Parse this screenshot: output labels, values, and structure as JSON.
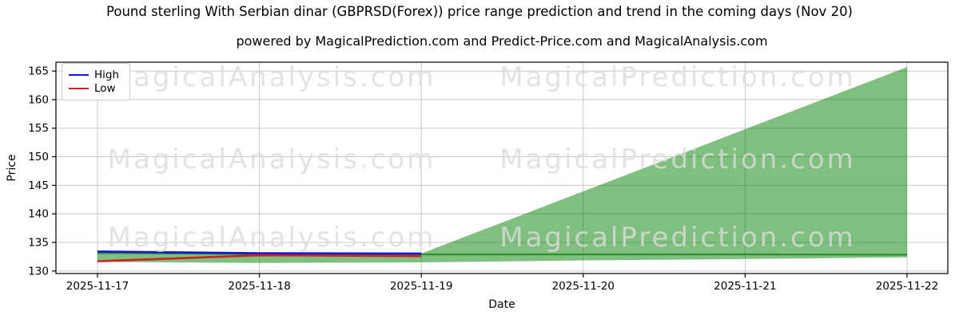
{
  "header": {
    "title": "Pound sterling With Serbian dinar (GBPRSD(Forex)) price range prediction and trend in the coming days (Nov 20)",
    "subtitle": "powered by MagicalPrediction.com and Predict-Price.com and MagicalAnalysis.com"
  },
  "watermarks": {
    "left_text": "MagicalAnalysis.com",
    "right_text": "MagicalPrediction.com",
    "color": "rgba(220,220,220,0.8)"
  },
  "chart_data": {
    "type": "line",
    "title": "Pound sterling With Serbian dinar (GBPRSD(Forex)) price range prediction and trend in the coming days (Nov 20)",
    "subtitle": "powered by MagicalPrediction.com and Predict-Price.com and MagicalAnalysis.com",
    "xlabel": "Date",
    "ylabel": "Price",
    "x_categories": [
      "2025-11-17",
      "2025-11-18",
      "2025-11-19",
      "2025-11-20",
      "2025-11-21",
      "2025-11-22"
    ],
    "yticks": [
      130,
      135,
      140,
      145,
      150,
      155,
      160,
      165
    ],
    "ylim": [
      129.55,
      166.55
    ],
    "grid": true,
    "grid_color": "#c8c8c8",
    "spine_color": "#000000",
    "legend_position": "upper-left",
    "legend": [
      {
        "label": "High",
        "color": "#1414d4"
      },
      {
        "label": "Low",
        "color": "#d02020"
      }
    ],
    "series": [
      {
        "name": "High",
        "color": "#1414d4",
        "width": 2.6,
        "x_index": [
          0,
          1,
          2
        ],
        "values": [
          133.4,
          133.1,
          133.05
        ],
        "in_legend": true
      },
      {
        "name": "Low",
        "color": "#d02020",
        "width": 2.6,
        "x_index": [
          0,
          1,
          2
        ],
        "values": [
          131.7,
          132.75,
          132.6
        ],
        "in_legend": true
      },
      {
        "name": "Prediction mid",
        "color": "#2f8f2f",
        "width": 2.2,
        "x_index": [
          0,
          1,
          2,
          3,
          4,
          5
        ],
        "values": [
          133.15,
          132.95,
          132.9,
          132.9,
          132.9,
          132.85
        ],
        "in_legend": false
      }
    ],
    "band": {
      "name": "Prediction range",
      "color": "rgba(0,128,0,0.5)",
      "x_index": [
        0,
        1,
        2,
        3,
        4,
        5
      ],
      "upper": [
        133.4,
        133.1,
        133.05,
        143.93,
        154.82,
        165.7
      ],
      "lower": [
        131.6,
        131.4,
        131.5,
        131.85,
        132.1,
        132.4
      ]
    }
  }
}
